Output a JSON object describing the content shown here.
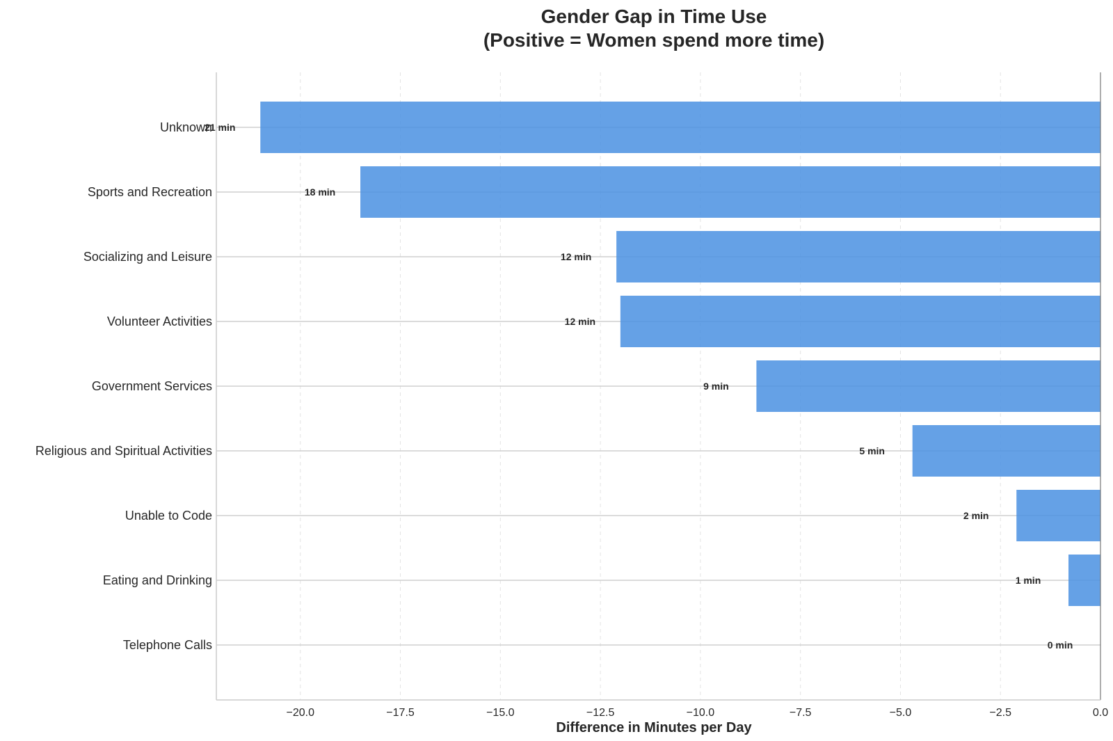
{
  "chart_data": {
    "type": "bar",
    "orientation": "horizontal",
    "title_line1": "Gender Gap in Time Use",
    "title_line2": "(Positive = Women spend more time)",
    "xlabel": "Difference in Minutes per Day",
    "ylabel": "",
    "xlim": [
      -22.1,
      0.0
    ],
    "xticks": [
      -20.0,
      -17.5,
      -15.0,
      -12.5,
      -10.0,
      -7.5,
      -5.0,
      -2.5,
      0.0
    ],
    "xtick_labels": [
      "−20.0",
      "−17.5",
      "−15.0",
      "−12.5",
      "−10.0",
      "−7.5",
      "−5.0",
      "−2.5",
      "0.0"
    ],
    "grid": true,
    "bar_color": "#4a90e2",
    "categories": [
      "Unknown",
      "Sports and Recreation",
      "Socializing and Leisure",
      "Volunteer Activities",
      "Government Services",
      "Religious and Spiritual Activities",
      "Unable to Code",
      "Eating and Drinking",
      "Telephone Calls"
    ],
    "values": [
      -21.0,
      -18.5,
      -12.1,
      -12.0,
      -8.6,
      -4.7,
      -2.1,
      -0.8,
      0.0
    ],
    "data_labels": [
      "21 min",
      "18 min",
      "12 min",
      "12 min",
      "9 min",
      "5 min",
      "2 min",
      "1 min",
      "0 min"
    ]
  }
}
